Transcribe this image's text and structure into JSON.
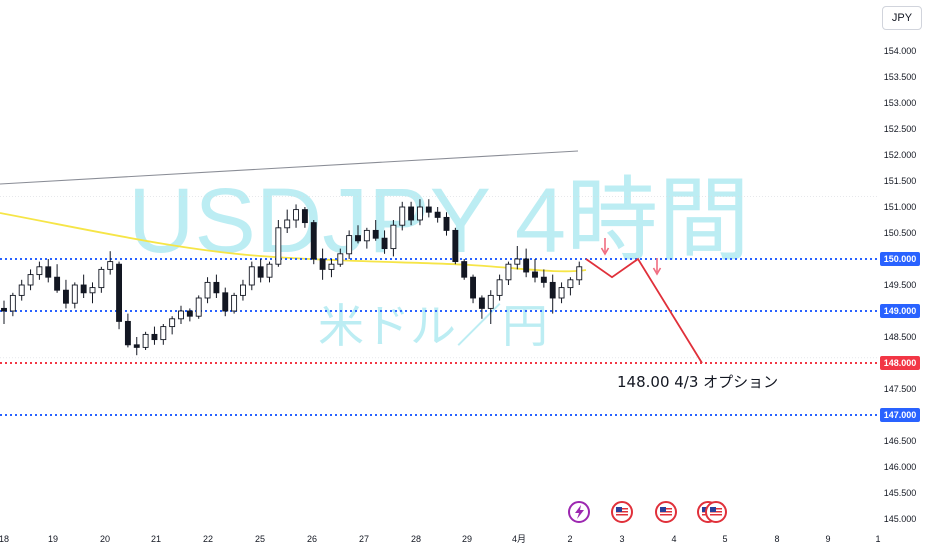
{
  "currency_button": "JPY",
  "watermark": {
    "line1": "USDJPY  4時間",
    "line2": "米ドル／円"
  },
  "annotation": "148.00  4/3 オプション",
  "chart_data": {
    "type": "candlestick",
    "symbol": "USDJPY",
    "timeframe": "4時間",
    "ylim": [
      144.85,
      154.35
    ],
    "y_ticks": [
      "154.000",
      "153.500",
      "153.000",
      "152.500",
      "152.000",
      "151.500",
      "151.000",
      "150.500",
      "150.000",
      "149.500",
      "149.000",
      "148.500",
      "148.000",
      "147.500",
      "147.000",
      "146.500",
      "146.000",
      "145.500",
      "145.000"
    ],
    "x_ticks": [
      "18",
      "19",
      "20",
      "21",
      "22",
      "25",
      "26",
      "27",
      "28",
      "29",
      "4月",
      "2",
      "3",
      "4",
      "5",
      "8",
      "9",
      "1"
    ],
    "horizontal_levels": [
      {
        "price": 150.0,
        "label": "150.000",
        "color": "#2962ff"
      },
      {
        "price": 149.0,
        "label": "149.000",
        "color": "#2962ff"
      },
      {
        "price": 148.0,
        "label": "148.000",
        "color": "#f23645"
      },
      {
        "price": 147.0,
        "label": "147.000",
        "color": "#2962ff"
      }
    ],
    "candles": [
      [
        149.05,
        149.2,
        148.75,
        149.0
      ],
      [
        149.0,
        149.35,
        148.9,
        149.3
      ],
      [
        149.3,
        149.6,
        149.2,
        149.5
      ],
      [
        149.5,
        149.8,
        149.4,
        149.7
      ],
      [
        149.7,
        149.95,
        149.6,
        149.85
      ],
      [
        149.85,
        150.0,
        149.55,
        149.65
      ],
      [
        149.65,
        149.9,
        149.35,
        149.4
      ],
      [
        149.4,
        149.6,
        149.05,
        149.15
      ],
      [
        149.15,
        149.55,
        149.05,
        149.5
      ],
      [
        149.5,
        149.7,
        149.25,
        149.35
      ],
      [
        149.35,
        149.55,
        149.15,
        149.45
      ],
      [
        149.45,
        149.85,
        149.35,
        149.8
      ],
      [
        149.8,
        150.15,
        149.7,
        149.95
      ],
      [
        149.9,
        149.95,
        148.65,
        148.8
      ],
      [
        148.8,
        148.95,
        148.3,
        148.35
      ],
      [
        148.35,
        148.5,
        148.15,
        148.3
      ],
      [
        148.3,
        148.6,
        148.25,
        148.55
      ],
      [
        148.55,
        148.7,
        148.35,
        148.45
      ],
      [
        148.45,
        148.75,
        148.35,
        148.7
      ],
      [
        148.7,
        148.9,
        148.55,
        148.85
      ],
      [
        148.85,
        149.1,
        148.75,
        149.0
      ],
      [
        149.0,
        149.05,
        148.8,
        148.9
      ],
      [
        148.9,
        149.3,
        148.85,
        149.25
      ],
      [
        149.25,
        149.65,
        149.15,
        149.55
      ],
      [
        149.55,
        149.7,
        149.25,
        149.35
      ],
      [
        149.35,
        149.45,
        148.9,
        149.0
      ],
      [
        149.0,
        149.35,
        148.95,
        149.3
      ],
      [
        149.3,
        149.6,
        149.2,
        149.5
      ],
      [
        149.5,
        149.95,
        149.4,
        149.85
      ],
      [
        149.85,
        150.0,
        149.55,
        149.65
      ],
      [
        149.65,
        149.95,
        149.55,
        149.9
      ],
      [
        149.9,
        150.75,
        149.85,
        150.6
      ],
      [
        150.6,
        150.95,
        150.5,
        150.75
      ],
      [
        150.75,
        151.05,
        150.6,
        150.95
      ],
      [
        150.95,
        151.0,
        150.6,
        150.7
      ],
      [
        150.7,
        150.75,
        149.9,
        150.0
      ],
      [
        150.0,
        150.2,
        149.6,
        149.8
      ],
      [
        149.8,
        150.0,
        149.65,
        149.9
      ],
      [
        149.9,
        150.2,
        149.85,
        150.1
      ],
      [
        150.1,
        150.55,
        150.0,
        150.45
      ],
      [
        150.45,
        150.65,
        150.3,
        150.35
      ],
      [
        150.35,
        150.6,
        150.2,
        150.55
      ],
      [
        150.55,
        150.75,
        150.35,
        150.4
      ],
      [
        150.4,
        150.55,
        150.1,
        150.2
      ],
      [
        150.2,
        150.75,
        150.05,
        150.65
      ],
      [
        150.65,
        151.1,
        150.55,
        151.0
      ],
      [
        151.0,
        151.1,
        150.65,
        150.75
      ],
      [
        150.75,
        151.15,
        150.65,
        151.0
      ],
      [
        151.0,
        151.15,
        150.8,
        150.9
      ],
      [
        150.9,
        151.0,
        150.7,
        150.8
      ],
      [
        150.8,
        150.9,
        150.45,
        150.55
      ],
      [
        150.55,
        150.6,
        149.9,
        149.95
      ],
      [
        149.95,
        150.0,
        149.6,
        149.65
      ],
      [
        149.65,
        149.7,
        149.15,
        149.25
      ],
      [
        149.25,
        149.3,
        148.85,
        149.05
      ],
      [
        149.05,
        149.4,
        148.75,
        149.3
      ],
      [
        149.3,
        149.7,
        149.2,
        149.6
      ],
      [
        149.6,
        149.95,
        149.5,
        149.9
      ],
      [
        149.9,
        150.25,
        149.8,
        150.0
      ],
      [
        150.0,
        150.2,
        149.65,
        149.75
      ],
      [
        149.75,
        150.0,
        149.55,
        149.65
      ],
      [
        149.65,
        149.8,
        149.45,
        149.55
      ],
      [
        149.55,
        149.7,
        148.95,
        149.25
      ],
      [
        149.25,
        149.55,
        149.15,
        149.45
      ],
      [
        149.45,
        149.65,
        149.3,
        149.6
      ],
      [
        149.6,
        149.95,
        149.5,
        149.85
      ]
    ],
    "forecast_path": [
      [
        150.0,
        150.0
      ],
      [
        149.65,
        149.5
      ],
      [
        150.0,
        150.0
      ],
      [
        148.0,
        148.0
      ]
    ]
  }
}
